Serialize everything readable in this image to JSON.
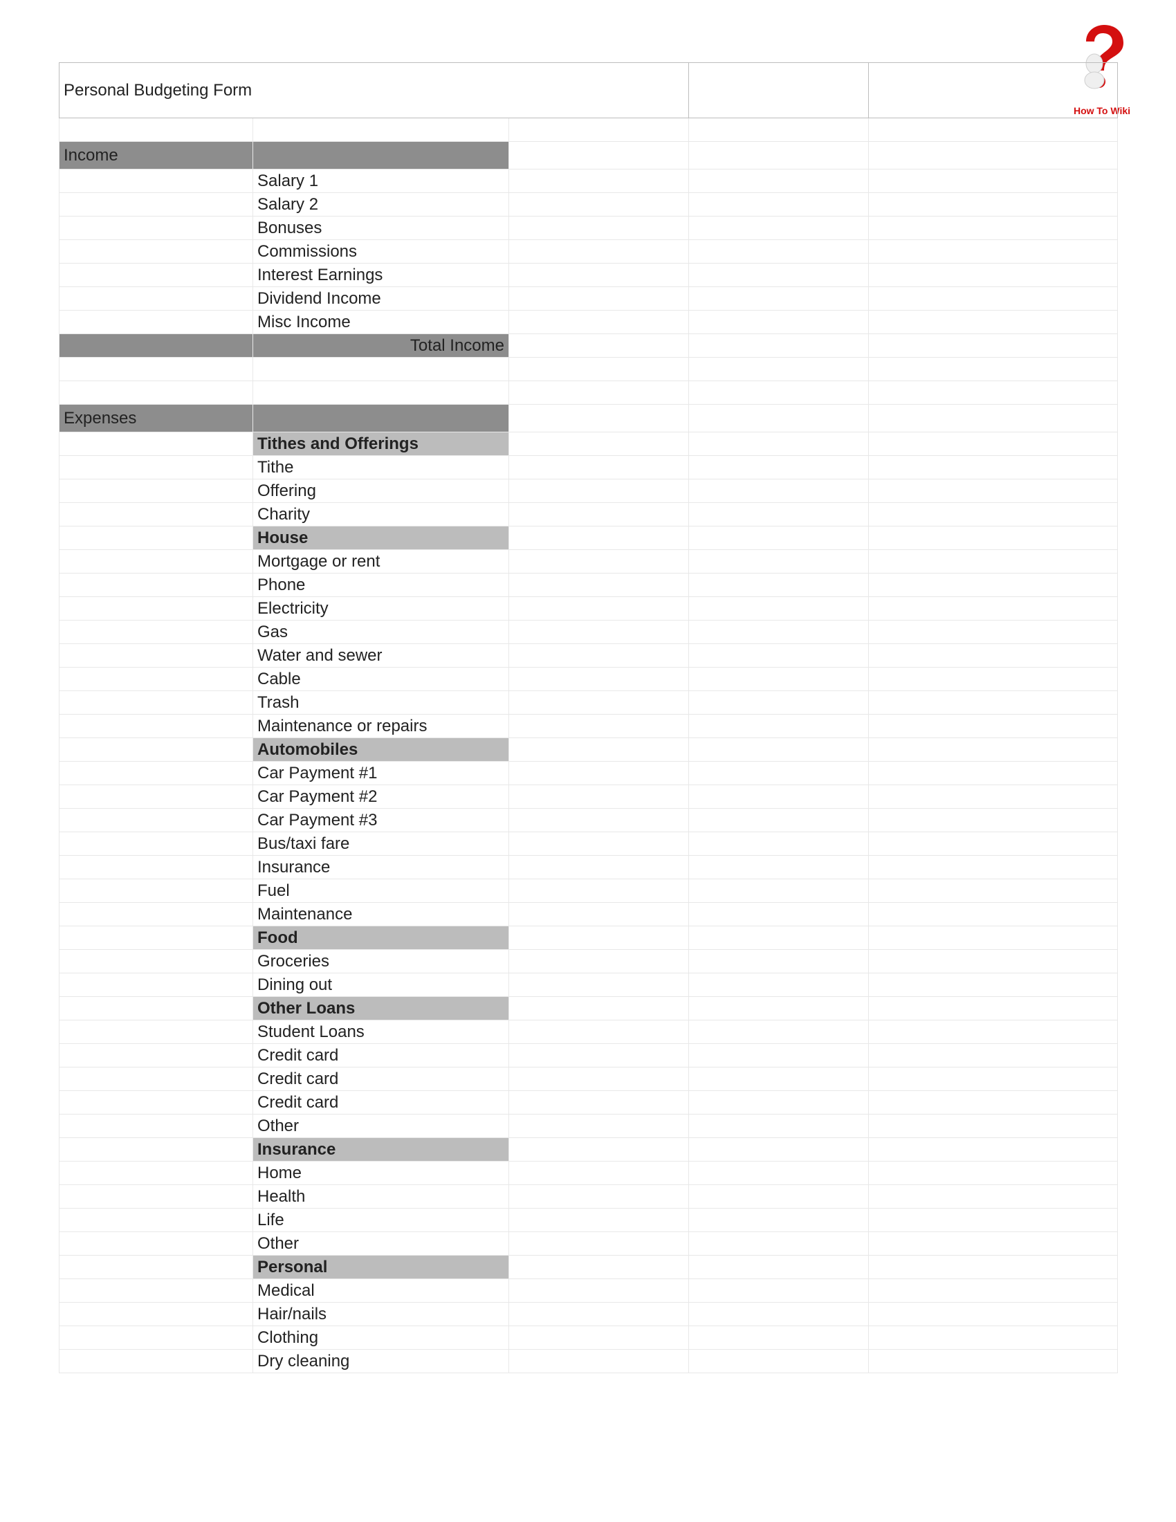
{
  "title": "Personal Budgeting Form",
  "logo_text": "How To Wiki",
  "colors": {
    "section_bg": "#8d8d8d",
    "section_fg": "#ffffff",
    "subcat_bg": "#bcbcbc",
    "subcat_fg": "#4a4a4a",
    "border": "#e8e8e8",
    "logo_red": "#d40f0f"
  },
  "columns": 5,
  "rows": [
    {
      "type": "title"
    },
    {
      "type": "blank"
    },
    {
      "type": "section",
      "label": "Income"
    },
    {
      "type": "item",
      "label": "Salary 1"
    },
    {
      "type": "item",
      "label": "Salary 2"
    },
    {
      "type": "item",
      "label": "Bonuses"
    },
    {
      "type": "item",
      "label": "Commissions"
    },
    {
      "type": "item",
      "label": "Interest Earnings"
    },
    {
      "type": "item",
      "label": "Dividend Income"
    },
    {
      "type": "item",
      "label": "Misc Income"
    },
    {
      "type": "total",
      "label": "Total Income"
    },
    {
      "type": "blank"
    },
    {
      "type": "blank"
    },
    {
      "type": "section",
      "label": "Expenses"
    },
    {
      "type": "subcat",
      "label": "Tithes and Offerings"
    },
    {
      "type": "item",
      "label": "Tithe"
    },
    {
      "type": "item",
      "label": "Offering"
    },
    {
      "type": "item",
      "label": "Charity"
    },
    {
      "type": "subcat",
      "label": "House"
    },
    {
      "type": "item",
      "label": "Mortgage or rent"
    },
    {
      "type": "item",
      "label": "Phone"
    },
    {
      "type": "item",
      "label": "Electricity"
    },
    {
      "type": "item",
      "label": "Gas"
    },
    {
      "type": "item",
      "label": "Water and sewer"
    },
    {
      "type": "item",
      "label": "Cable"
    },
    {
      "type": "item",
      "label": "Trash"
    },
    {
      "type": "item",
      "label": "Maintenance or repairs"
    },
    {
      "type": "subcat",
      "label": "Automobiles"
    },
    {
      "type": "item",
      "label": "Car Payment #1"
    },
    {
      "type": "item",
      "label": "Car Payment #2"
    },
    {
      "type": "item",
      "label": "Car Payment #3"
    },
    {
      "type": "item",
      "label": "Bus/taxi fare"
    },
    {
      "type": "item",
      "label": "Insurance"
    },
    {
      "type": "item",
      "label": "Fuel"
    },
    {
      "type": "item",
      "label": "Maintenance"
    },
    {
      "type": "subcat",
      "label": "Food"
    },
    {
      "type": "item",
      "label": "Groceries"
    },
    {
      "type": "item",
      "label": "Dining out"
    },
    {
      "type": "subcat",
      "label": "Other Loans"
    },
    {
      "type": "item",
      "label": "Student Loans"
    },
    {
      "type": "item",
      "label": "Credit card"
    },
    {
      "type": "item",
      "label": "Credit card"
    },
    {
      "type": "item",
      "label": "Credit card"
    },
    {
      "type": "item",
      "label": "Other"
    },
    {
      "type": "subcat",
      "label": "Insurance"
    },
    {
      "type": "item",
      "label": "Home"
    },
    {
      "type": "item",
      "label": "Health"
    },
    {
      "type": "item",
      "label": "Life"
    },
    {
      "type": "item",
      "label": "Other"
    },
    {
      "type": "subcat",
      "label": "Personal"
    },
    {
      "type": "item",
      "label": "Medical"
    },
    {
      "type": "item",
      "label": "Hair/nails"
    },
    {
      "type": "item",
      "label": "Clothing"
    },
    {
      "type": "item",
      "label": "Dry cleaning"
    }
  ]
}
